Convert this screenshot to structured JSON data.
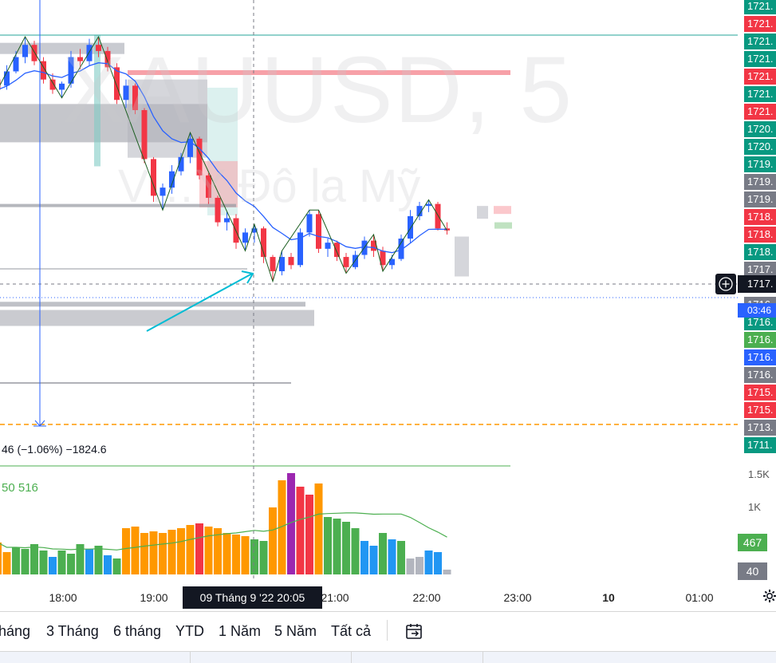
{
  "colors": {
    "up": "#2962ff",
    "down": "#f23645",
    "ema": "#2962ff",
    "zigzag": "#1b5e20",
    "vol_orange": "#ff9800",
    "vol_green": "#4caf50",
    "vol_blue": "#2196f3",
    "vol_red": "#f23645",
    "vol_purple": "#9c27b0",
    "vol_grey": "#b2b5be",
    "badge_green": "#089981",
    "badge_red": "#f23645",
    "badge_grey": "#787b86",
    "badge_blue": "#2962ff",
    "crosshair_bg": "#131722"
  },
  "watermark": {
    "symbol": "XAUUSD, 5",
    "description": "V…Y Đô la Mỹ"
  },
  "legend": {
    "change_text": "46 (−1.06%) −1824.6",
    "volume_text": "50  516"
  },
  "price_axis": {
    "labels": [
      {
        "text": "1721.",
        "color": "green"
      },
      {
        "text": "1721.",
        "color": "red"
      },
      {
        "text": "1721.",
        "color": "green"
      },
      {
        "text": "1721.",
        "color": "green"
      },
      {
        "text": "1721.",
        "color": "red"
      },
      {
        "text": "1721.",
        "color": "green"
      },
      {
        "text": "1721.",
        "color": "red"
      },
      {
        "text": "1720.",
        "color": "green"
      },
      {
        "text": "1720.",
        "color": "green"
      },
      {
        "text": "1719.",
        "color": "green"
      },
      {
        "text": "1719.",
        "color": "grey"
      },
      {
        "text": "1719.",
        "color": "grey"
      },
      {
        "text": "1718.",
        "color": "red"
      },
      {
        "text": "1718.",
        "color": "red"
      },
      {
        "text": "1718.",
        "color": "green"
      },
      {
        "text": "1717.",
        "color": "grey"
      },
      {
        "text": "1716.",
        "color": "white"
      },
      {
        "text": "1716.",
        "color": "grey"
      },
      {
        "text": "1716.",
        "color": "green"
      },
      {
        "text": "1716.",
        "color": "lightgreen"
      },
      {
        "text": "1716.",
        "color": "blue"
      },
      {
        "text": "1716.",
        "color": "grey"
      },
      {
        "text": "1715.",
        "color": "red"
      },
      {
        "text": "1715.",
        "color": "red"
      },
      {
        "text": "1713.",
        "color": "grey"
      },
      {
        "text": "1711.",
        "color": "green"
      }
    ],
    "current_price": "1717.",
    "countdown": "03:46"
  },
  "volume_axis": {
    "tick_top": "1.5K",
    "tick_mid": "1K",
    "badge_green": "467",
    "badge_grey": "40"
  },
  "time_axis": {
    "labels": [
      "18:00",
      "19:00",
      "21:00",
      "22:00",
      "23:00",
      "10",
      "01:00"
    ],
    "crosshair_label": "09 Tháng 9 '22   20:05"
  },
  "range_buttons": [
    "háng",
    "3 Tháng",
    "6 tháng",
    "YTD",
    "1 Năm",
    "5 Năm",
    "Tất cả"
  ],
  "chart_data": {
    "type": "candlestick",
    "title": "XAUUSD, 5",
    "ylim": [
      1710.9,
      1722.5
    ],
    "candles": [
      [
        1720.55,
        1720.8,
        1720.2,
        1720.3
      ],
      [
        1720.4,
        1720.9,
        1720.3,
        1720.75
      ],
      [
        1720.75,
        1721.25,
        1720.7,
        1721.1
      ],
      [
        1721.1,
        1721.6,
        1720.95,
        1721.4
      ],
      [
        1721.4,
        1721.5,
        1720.9,
        1721.0
      ],
      [
        1721.0,
        1721.1,
        1720.45,
        1720.55
      ],
      [
        1720.55,
        1720.7,
        1720.2,
        1720.3
      ],
      [
        1720.3,
        1720.5,
        1720.1,
        1720.45
      ],
      [
        1720.45,
        1721.25,
        1720.35,
        1721.1
      ],
      [
        1721.1,
        1721.3,
        1720.8,
        1721.0
      ],
      [
        1721.0,
        1721.55,
        1720.9,
        1721.4
      ],
      [
        1721.4,
        1721.6,
        1721.1,
        1721.25
      ],
      [
        1721.25,
        1721.35,
        1720.75,
        1720.85
      ],
      [
        1720.85,
        1720.95,
        1719.95,
        1720.05
      ],
      [
        1720.05,
        1720.55,
        1719.85,
        1720.4
      ],
      [
        1720.4,
        1720.45,
        1719.7,
        1719.8
      ],
      [
        1719.8,
        1719.85,
        1718.5,
        1718.6
      ],
      [
        1718.6,
        1718.65,
        1717.55,
        1717.7
      ],
      [
        1717.7,
        1718.0,
        1717.35,
        1717.9
      ],
      [
        1717.9,
        1718.45,
        1717.75,
        1718.3
      ],
      [
        1718.3,
        1718.75,
        1718.2,
        1718.65
      ],
      [
        1718.65,
        1719.25,
        1718.5,
        1719.1
      ],
      [
        1719.1,
        1719.15,
        1718.1,
        1718.2
      ],
      [
        1718.2,
        1718.25,
        1717.5,
        1717.65
      ],
      [
        1717.65,
        1717.7,
        1716.95,
        1717.05
      ],
      [
        1717.05,
        1717.3,
        1716.85,
        1717.15
      ],
      [
        1717.15,
        1717.25,
        1716.4,
        1716.55
      ],
      [
        1716.55,
        1716.9,
        1716.35,
        1716.8
      ],
      [
        1716.8,
        1717.0,
        1716.55,
        1716.9
      ],
      [
        1716.9,
        1716.95,
        1716.05,
        1716.2
      ],
      [
        1716.2,
        1716.25,
        1715.6,
        1715.85
      ],
      [
        1715.85,
        1716.35,
        1715.75,
        1716.2
      ],
      [
        1716.2,
        1716.3,
        1715.9,
        1716.0
      ],
      [
        1716.0,
        1716.9,
        1715.95,
        1716.8
      ],
      [
        1716.8,
        1717.35,
        1716.7,
        1717.25
      ],
      [
        1717.25,
        1717.35,
        1716.3,
        1716.4
      ],
      [
        1716.4,
        1716.65,
        1716.2,
        1716.55
      ],
      [
        1716.55,
        1716.6,
        1716.1,
        1716.2
      ],
      [
        1716.2,
        1716.3,
        1715.8,
        1715.95
      ],
      [
        1715.95,
        1716.35,
        1715.9,
        1716.25
      ],
      [
        1716.25,
        1716.7,
        1716.15,
        1716.6
      ],
      [
        1716.6,
        1716.75,
        1716.2,
        1716.35
      ],
      [
        1716.35,
        1716.45,
        1715.85,
        1716.0
      ],
      [
        1716.0,
        1716.25,
        1715.9,
        1716.15
      ],
      [
        1716.15,
        1716.75,
        1716.1,
        1716.65
      ],
      [
        1716.65,
        1717.35,
        1716.55,
        1717.2
      ],
      [
        1717.2,
        1717.55,
        1717.1,
        1717.45
      ],
      [
        1717.45,
        1717.6,
        1717.3,
        1717.5
      ],
      [
        1717.5,
        1717.55,
        1716.85,
        1716.9
      ],
      [
        1716.9,
        1717.05,
        1716.75,
        1716.85
      ]
    ]
  }
}
